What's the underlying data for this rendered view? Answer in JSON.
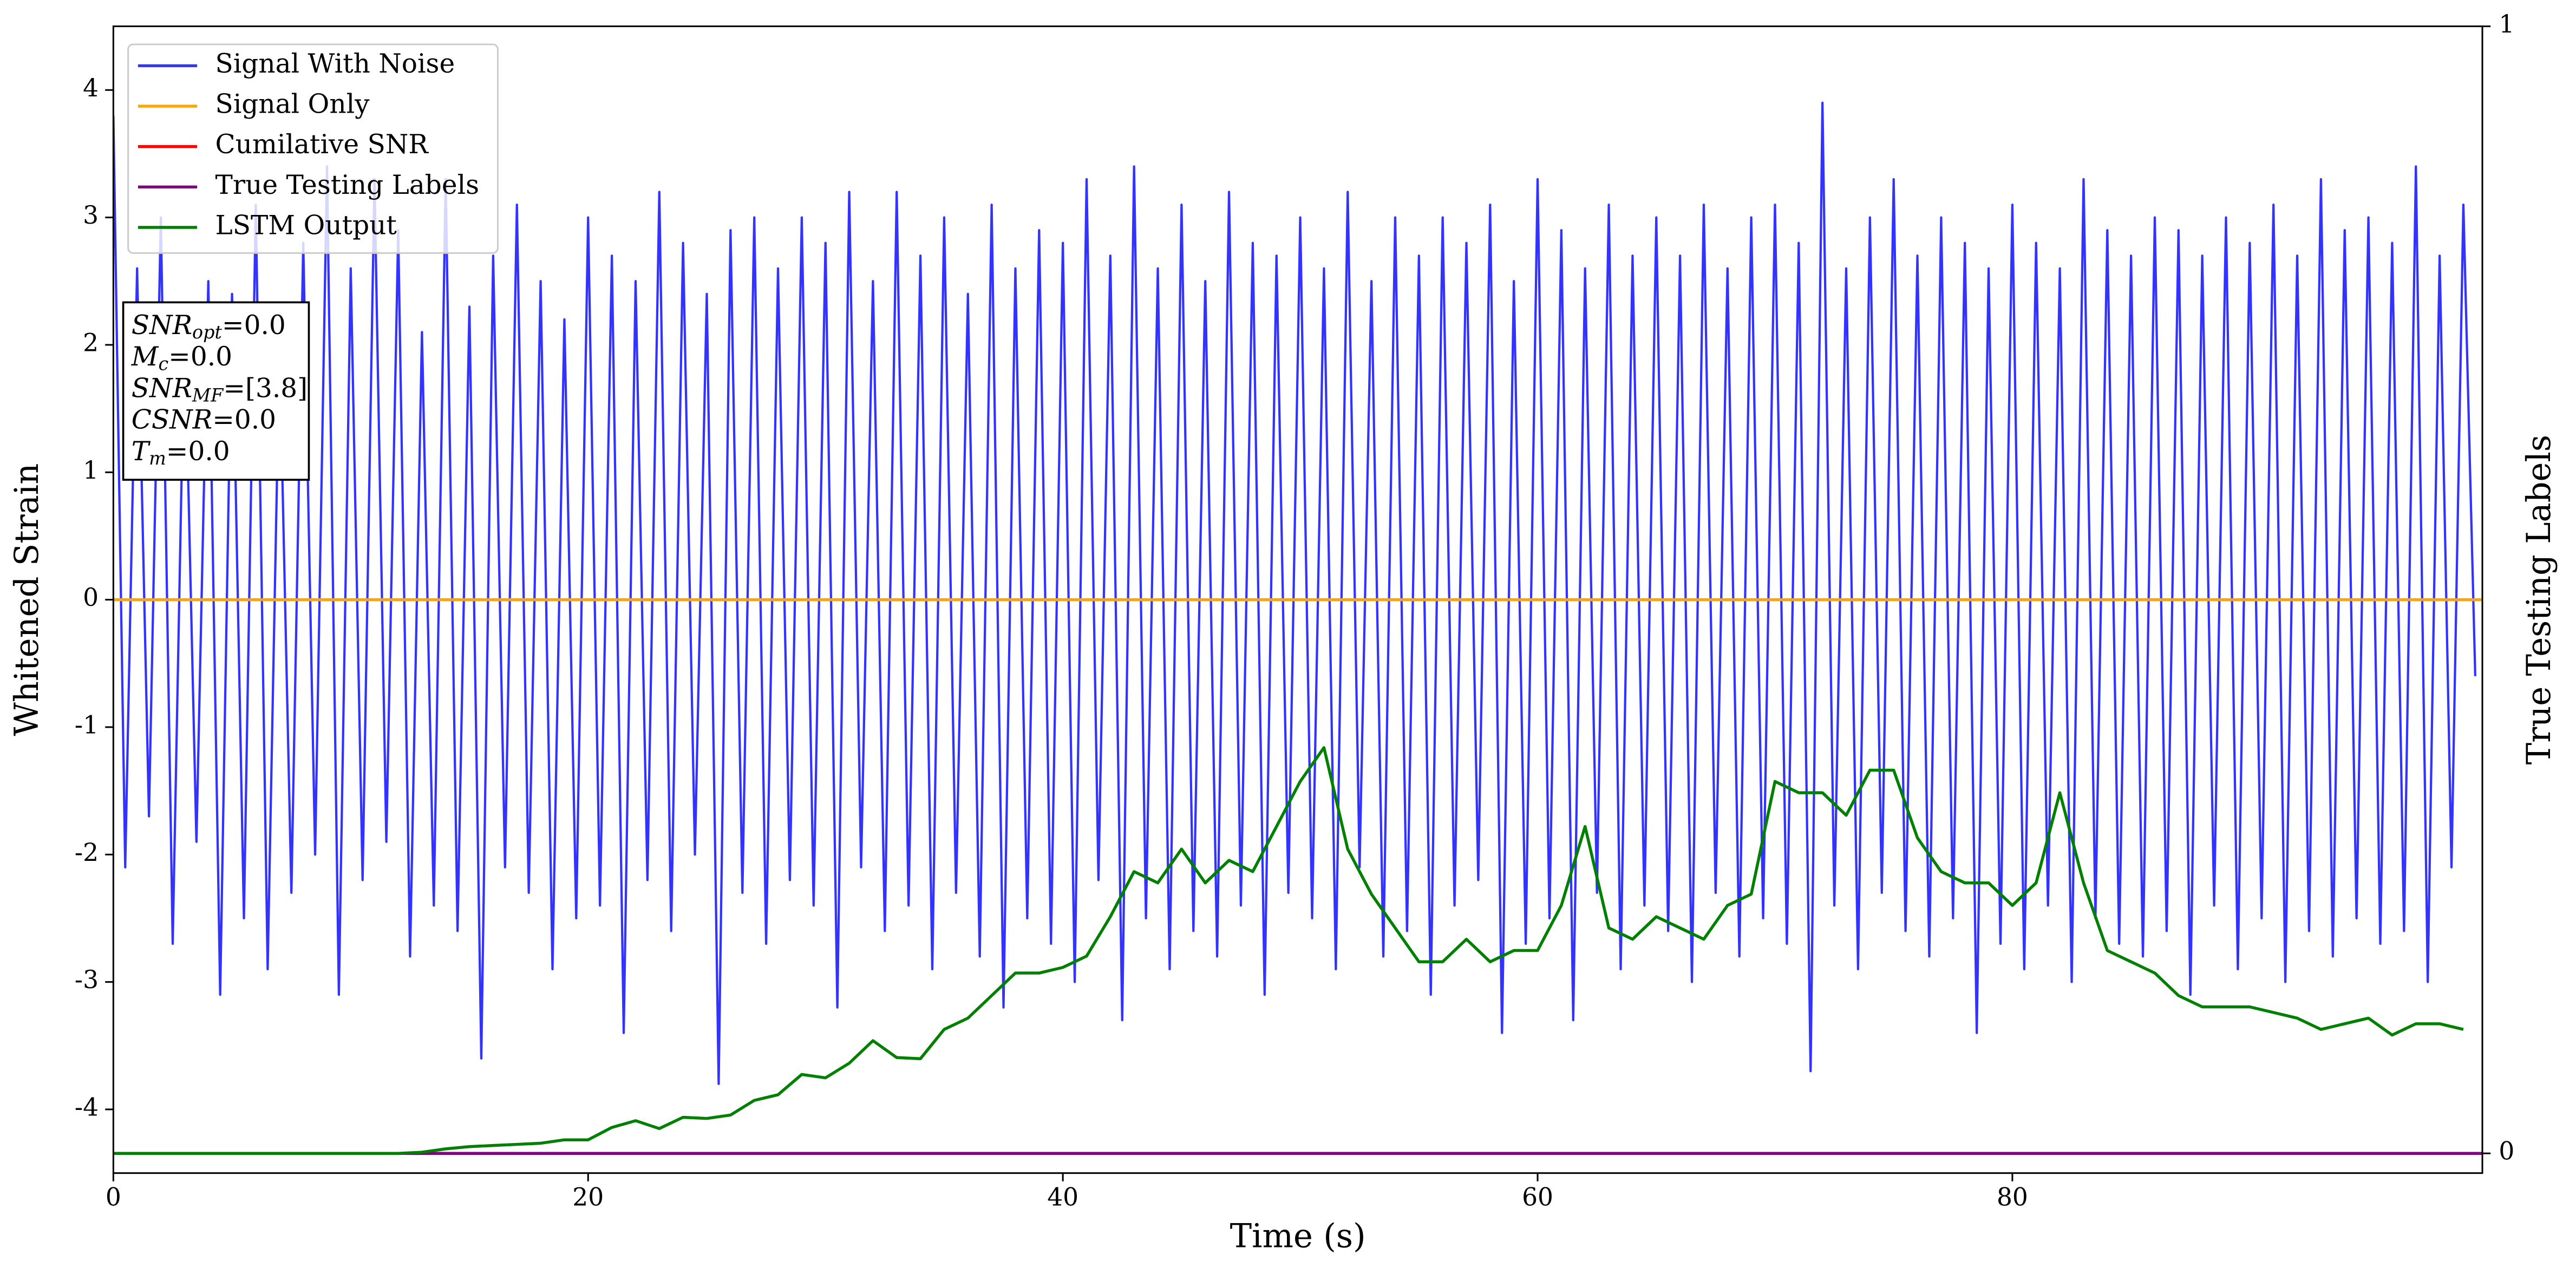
{
  "chart_data": {
    "type": "line",
    "xlabel": "Time (s)",
    "ylabel": "Whitened Strain",
    "y2label": "True Testing Labels",
    "xlim": [
      0,
      99.8
    ],
    "ylim": [
      -4.5,
      4.5
    ],
    "y2lim": [
      -0.0175,
      1
    ],
    "xticks": [
      0,
      20,
      40,
      60,
      80
    ],
    "yticks": [
      -4,
      -3,
      -2,
      -1,
      0,
      1,
      2,
      3,
      4
    ],
    "y2ticks": [
      0,
      1
    ],
    "legend": "upper left",
    "annotation": [
      {
        "base": "SNR",
        "sub": "opt",
        "value": "=0.0"
      },
      {
        "base": "M",
        "sub": "c",
        "value": "=0.0"
      },
      {
        "base": "SNR",
        "sub": "MF",
        "value": "=[3.8]"
      },
      {
        "base": "CSNR",
        "value": "=0.0"
      },
      {
        "base": "T",
        "sub": "m",
        "value": "=0.0"
      }
    ],
    "series": [
      {
        "name": "Signal With Noise",
        "color": "#3333ff",
        "x": [
          0,
          0.5,
          1,
          1.5,
          2,
          2.5,
          3,
          3.5,
          4,
          4.5,
          5,
          5.5,
          6,
          6.5,
          7,
          7.5,
          8,
          8.5,
          9,
          9.5,
          10,
          10.5,
          11,
          11.5,
          12,
          12.5,
          13,
          13.5,
          14,
          14.5,
          15,
          15.5,
          16,
          16.5,
          17,
          17.5,
          18,
          18.5,
          19,
          19.5,
          20,
          20.5,
          21,
          21.5,
          22,
          22.5,
          23,
          23.5,
          24,
          24.5,
          25,
          25.5,
          26,
          26.5,
          27,
          27.5,
          28,
          28.5,
          29,
          29.5,
          30,
          30.5,
          31,
          31.5,
          32,
          32.5,
          33,
          33.5,
          34,
          34.5,
          35,
          35.5,
          36,
          36.5,
          37,
          37.5,
          38,
          38.5,
          39,
          39.5,
          40,
          40.5,
          41,
          41.5,
          42,
          42.5,
          43,
          43.5,
          44,
          44.5,
          45,
          45.5,
          46,
          46.5,
          47,
          47.5,
          48,
          48.5,
          49,
          49.5,
          50,
          50.5,
          51,
          51.5,
          52,
          52.5,
          53,
          53.5,
          54,
          54.5,
          55,
          55.5,
          56,
          56.5,
          57,
          57.5,
          58,
          58.5,
          59,
          59.5,
          60,
          60.5,
          61,
          61.5,
          62,
          62.5,
          63,
          63.5,
          64,
          64.5,
          65,
          65.5,
          66,
          66.5,
          67,
          67.5,
          68,
          68.5,
          69,
          69.5,
          70,
          70.5,
          71,
          71.5,
          72,
          72.5,
          73,
          73.5,
          74,
          74.5,
          75,
          75.5,
          76,
          76.5,
          77,
          77.5,
          78,
          78.5,
          79,
          79.5,
          80,
          80.5,
          81,
          81.5,
          82,
          82.5,
          83,
          83.5,
          84,
          84.5,
          85,
          85.5,
          86,
          86.5,
          87,
          87.5,
          88,
          88.5,
          89,
          89.5,
          90,
          90.5,
          91,
          91.5,
          92,
          92.5,
          93,
          93.5,
          94,
          94.5,
          95,
          95.5,
          96,
          96.5,
          97,
          97.5,
          98,
          98.5,
          99,
          99.5
        ],
        "values": [
          3.8,
          -2.1,
          2.6,
          -1.7,
          3.0,
          -2.7,
          2.2,
          -1.9,
          2.5,
          -3.1,
          2.4,
          -2.5,
          3.1,
          -2.9,
          2.0,
          -2.3,
          2.8,
          -2.0,
          3.4,
          -3.1,
          2.6,
          -2.2,
          3.3,
          -1.9,
          2.9,
          -2.8,
          2.1,
          -2.4,
          3.3,
          -2.6,
          2.3,
          -3.6,
          2.7,
          -2.1,
          3.1,
          -2.3,
          2.5,
          -2.9,
          2.2,
          -2.5,
          3.0,
          -2.4,
          2.7,
          -3.4,
          2.5,
          -2.2,
          3.2,
          -2.6,
          2.8,
          -2.0,
          2.4,
          -3.8,
          2.9,
          -2.3,
          3.0,
          -2.7,
          2.6,
          -2.2,
          3.0,
          -2.4,
          2.8,
          -3.2,
          3.2,
          -2.1,
          2.5,
          -2.6,
          3.2,
          -2.4,
          2.7,
          -2.9,
          3.0,
          -2.3,
          2.4,
          -2.8,
          3.1,
          -3.2,
          2.6,
          -2.5,
          2.9,
          -2.7,
          2.8,
          -3.0,
          3.3,
          -2.2,
          2.7,
          -3.3,
          3.4,
          -2.5,
          2.6,
          -2.9,
          3.1,
          -2.6,
          2.5,
          -2.8,
          3.2,
          -2.4,
          2.8,
          -3.1,
          2.7,
          -2.3,
          3.0,
          -2.5,
          2.6,
          -2.9,
          3.2,
          -2.1,
          2.5,
          -2.8,
          3.0,
          -2.6,
          2.7,
          -3.1,
          3.0,
          -2.4,
          2.8,
          -2.2,
          3.1,
          -3.4,
          2.5,
          -2.7,
          3.3,
          -2.5,
          2.9,
          -3.3,
          2.6,
          -2.3,
          3.1,
          -2.9,
          2.7,
          -2.4,
          3.0,
          -2.6,
          2.7,
          -3.0,
          3.1,
          -2.3,
          2.6,
          -2.8,
          3.0,
          -2.5,
          3.1,
          -2.7,
          2.8,
          -3.7,
          3.9,
          -2.4,
          2.6,
          -2.9,
          3.0,
          -2.3,
          3.3,
          -2.6,
          2.7,
          -2.8,
          3.0,
          -2.5,
          2.8,
          -3.4,
          2.6,
          -2.7,
          3.1,
          -2.9,
          2.8,
          -2.4,
          2.6,
          -3.0,
          3.3,
          -2.5,
          2.9,
          -2.7,
          2.7,
          -2.8,
          3.0,
          -2.6,
          2.9,
          -3.1,
          2.7,
          -2.4,
          3.0,
          -2.9,
          2.8,
          -2.5,
          3.1,
          -3.0,
          2.7,
          -2.6,
          3.3,
          -2.8,
          2.9,
          -2.5,
          3.0,
          -2.7,
          2.8,
          -2.6,
          3.4,
          -3.0,
          2.7,
          -2.1,
          3.1,
          -0.6
        ]
      },
      {
        "name": "Signal Only",
        "color": "#ffa500",
        "x": [
          0,
          99.8
        ],
        "values": [
          0,
          0
        ]
      },
      {
        "name": "Cumilative SNR",
        "color": "#ff0000",
        "axis": "y2",
        "x": [
          0,
          99.8
        ],
        "values": [
          0,
          0
        ]
      },
      {
        "name": "True Testing Labels",
        "color": "#800080",
        "axis": "y2",
        "x": [
          0,
          99.8
        ],
        "values": [
          0,
          0
        ]
      },
      {
        "name": "LSTM Output",
        "color": "#008000",
        "axis": "y2",
        "x": [
          0,
          1,
          2,
          3,
          4,
          5,
          6,
          7,
          8,
          9,
          10,
          11,
          12,
          13,
          14,
          15,
          16,
          17,
          18,
          19,
          20,
          21,
          22,
          23,
          24,
          25,
          26,
          27,
          28,
          29,
          30,
          31,
          32,
          33,
          34,
          35,
          36,
          37,
          38,
          39,
          40,
          41,
          42,
          43,
          44,
          45,
          46,
          47,
          48,
          49,
          50,
          51,
          52,
          53,
          54,
          55,
          56,
          57,
          58,
          59,
          60,
          61,
          62,
          63,
          64,
          65,
          66,
          67,
          68,
          69,
          70,
          71,
          72,
          73,
          74,
          75,
          76,
          77,
          78,
          79,
          80,
          81,
          82,
          83,
          84,
          85,
          86,
          87,
          88,
          89,
          90,
          91,
          92,
          93,
          94,
          95,
          96,
          97,
          98,
          99
        ],
        "values": [
          0,
          0,
          0,
          0,
          0,
          0,
          0,
          0,
          0,
          0,
          0,
          0,
          0,
          0.001,
          0.004,
          0.006,
          0.007,
          0.008,
          0.009,
          0.012,
          0.012,
          0.023,
          0.029,
          0.022,
          0.032,
          0.031,
          0.034,
          0.047,
          0.052,
          0.07,
          0.067,
          0.08,
          0.1,
          0.085,
          0.084,
          0.11,
          0.12,
          0.14,
          0.16,
          0.16,
          0.165,
          0.175,
          0.21,
          0.25,
          0.24,
          0.27,
          0.24,
          0.26,
          0.25,
          0.29,
          0.33,
          0.36,
          0.27,
          0.23,
          0.2,
          0.17,
          0.17,
          0.19,
          0.17,
          0.18,
          0.18,
          0.22,
          0.29,
          0.2,
          0.19,
          0.21,
          0.2,
          0.19,
          0.22,
          0.23,
          0.33,
          0.32,
          0.32,
          0.3,
          0.34,
          0.34,
          0.28,
          0.25,
          0.24,
          0.24,
          0.22,
          0.24,
          0.32,
          0.24,
          0.18,
          0.17,
          0.16,
          0.14,
          0.13,
          0.13,
          0.13,
          0.125,
          0.12,
          0.11,
          0.115,
          0.12,
          0.105,
          0.115,
          0.115,
          0.11
        ]
      }
    ]
  }
}
